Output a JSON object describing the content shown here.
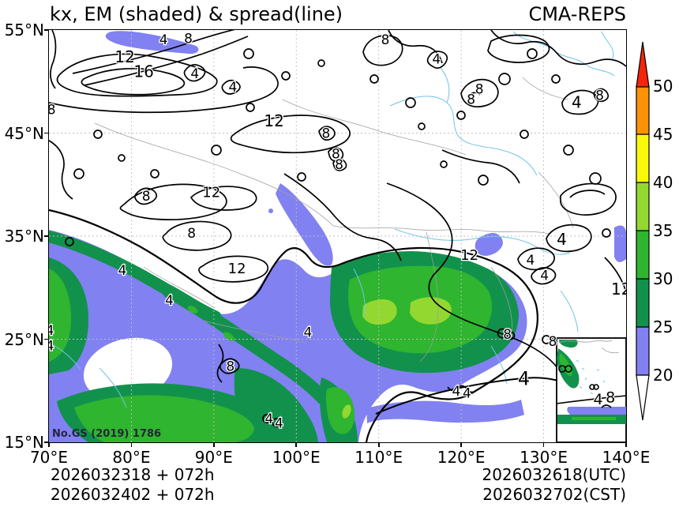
{
  "window": {
    "title_left": "kx, EM (shaded) & spread(line)",
    "title_right": "CMA-REPS"
  },
  "axes": {
    "x_ticks": [
      {
        "label": "70°E",
        "value": 70
      },
      {
        "label": "80°E",
        "value": 80
      },
      {
        "label": "90°E",
        "value": 90
      },
      {
        "label": "100°E",
        "value": 100
      },
      {
        "label": "110°E",
        "value": 110
      },
      {
        "label": "120°E",
        "value": 120
      },
      {
        "label": "130°E",
        "value": 130
      },
      {
        "label": "140°E",
        "value": 140
      }
    ],
    "y_ticks": [
      {
        "label": "55°N",
        "value": 55
      },
      {
        "label": "45°N",
        "value": 45
      },
      {
        "label": "35°N",
        "value": 35
      },
      {
        "label": "25°N",
        "value": 25
      },
      {
        "label": "15°N",
        "value": 15
      }
    ]
  },
  "footer": {
    "init_line_utc": "2026032318 + 072h",
    "init_line_cst": "2026032402 + 072h",
    "valid_line_utc": "2026032618(UTC)",
    "valid_line_cst": "2026032702(CST)"
  },
  "watermark": "No.GS (2019) 1786",
  "chart_data": {
    "type": "heatmap",
    "title": "kx, EM (shaded) & spread(line)",
    "source_label": "CMA-REPS",
    "shaded_variable": "kx ensemble mean (EM)",
    "line_variable": "kx ensemble spread",
    "lon_range": [
      70,
      140
    ],
    "lat_range": [
      15,
      55
    ],
    "grid_lons": [
      80,
      90,
      100,
      110,
      120,
      130
    ],
    "grid_lats": [
      25,
      35,
      45
    ],
    "shading_levels": [
      20,
      25,
      30,
      35,
      40,
      45,
      50
    ],
    "shading_colors": [
      "#ffffff",
      "#8181f1",
      "#12914d",
      "#2fb52f",
      "#93d830",
      "#f8f909",
      "#fb9207",
      "#f3250b"
    ],
    "contour_levels": [
      4,
      8,
      12,
      16
    ],
    "contour_color": "#000000",
    "contour_labels": [
      {
        "value": "4",
        "lon": 83.9,
        "lat": 54.1
      },
      {
        "value": "8",
        "lon": 86.9,
        "lat": 54.2
      },
      {
        "value": "12",
        "lon": 79.2,
        "lat": 52.4,
        "size": 20
      },
      {
        "value": "16",
        "lon": 81.5,
        "lat": 51.0,
        "size": 20
      },
      {
        "value": "4",
        "lon": 87.7,
        "lat": 50.8
      },
      {
        "value": "4",
        "lon": 92.3,
        "lat": 49.5
      },
      {
        "value": "8",
        "lon": 110.8,
        "lat": 54.1
      },
      {
        "value": "4",
        "lon": 117.0,
        "lat": 52.2
      },
      {
        "value": "8",
        "lon": 122.2,
        "lat": 49.3
      },
      {
        "value": "8",
        "lon": 121.2,
        "lat": 48.3
      },
      {
        "value": "4",
        "lon": 134.0,
        "lat": 48.0,
        "size": 20
      },
      {
        "value": "8",
        "lon": 136.8,
        "lat": 48.7
      },
      {
        "value": "8",
        "lon": 70.3,
        "lat": 47.3
      },
      {
        "value": "12",
        "lon": 97.3,
        "lat": 46.2,
        "size": 20
      },
      {
        "value": "8",
        "lon": 103.6,
        "lat": 45.0
      },
      {
        "value": "8",
        "lon": 104.8,
        "lat": 43.0
      },
      {
        "value": "8",
        "lon": 105.2,
        "lat": 42.0
      },
      {
        "value": "8",
        "lon": 81.8,
        "lat": 38.9
      },
      {
        "value": "12",
        "lon": 89.7,
        "lat": 39.3,
        "size": 18
      },
      {
        "value": "8",
        "lon": 87.3,
        "lat": 35.3
      },
      {
        "value": "12",
        "lon": 92.8,
        "lat": 31.9,
        "size": 18
      },
      {
        "value": "4",
        "lon": 78.9,
        "lat": 31.7
      },
      {
        "value": "4",
        "lon": 84.6,
        "lat": 28.8
      },
      {
        "value": "4",
        "lon": 70.1,
        "lat": 25.9
      },
      {
        "value": "4",
        "lon": 70.1,
        "lat": 24.4
      },
      {
        "value": "12",
        "lon": 121.0,
        "lat": 33.2,
        "size": 18
      },
      {
        "value": "4",
        "lon": 132.2,
        "lat": 34.7,
        "size": 20
      },
      {
        "value": "4",
        "lon": 128.4,
        "lat": 32.7
      },
      {
        "value": "4",
        "lon": 130.1,
        "lat": 31.2
      },
      {
        "value": "12",
        "lon": 139.4,
        "lat": 29.9,
        "size": 20
      },
      {
        "value": "8",
        "lon": 125.6,
        "lat": 25.5
      },
      {
        "value": "8",
        "lon": 131.1,
        "lat": 24.8
      },
      {
        "value": "4",
        "lon": 101.4,
        "lat": 25.7
      },
      {
        "value": "8",
        "lon": 92.0,
        "lat": 22.4
      },
      {
        "value": "4",
        "lon": 127.6,
        "lat": 21.2,
        "size": 24
      },
      {
        "value": "4",
        "lon": 119.4,
        "lat": 20.0
      },
      {
        "value": "4",
        "lon": 120.7,
        "lat": 19.8
      },
      {
        "value": "4",
        "lon": 96.7,
        "lat": 17.3
      },
      {
        "value": "4",
        "lon": 97.9,
        "lat": 16.9
      },
      {
        "value": "4",
        "lon": 136.6,
        "lat": 19.2,
        "size": 19
      },
      {
        "value": "8",
        "lon": 138.1,
        "lat": 19.4,
        "size": 19
      }
    ]
  }
}
